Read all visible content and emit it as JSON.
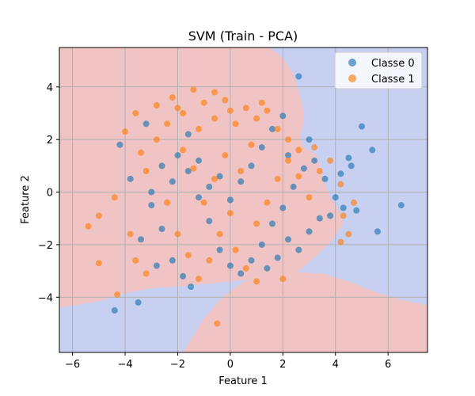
{
  "chart_data": {
    "type": "scatter",
    "title": "SVM (Train - PCA)",
    "xlabel": "Feature 1",
    "ylabel": "Feature 2",
    "xlim": [
      -6.5,
      7.5
    ],
    "ylim": [
      -6.1,
      5.5
    ],
    "xticks": [
      -6,
      -4,
      -2,
      0,
      2,
      4,
      6
    ],
    "yticks": [
      -4,
      -2,
      0,
      2,
      4
    ],
    "grid": true,
    "legend_position": "top-right",
    "region_colors": {
      "class_0": "#c8d0f2",
      "class_1": "#f0c4c4"
    },
    "decision_boundary": {
      "upper_segment": [
        [
          -6.5,
          5.5
        ],
        [
          -1.5,
          5.5
        ],
        [
          1.5,
          5.5
        ],
        [
          2.0,
          5.1
        ],
        [
          2.4,
          4.5
        ],
        [
          2.55,
          4.0
        ],
        [
          2.75,
          3.3
        ],
        [
          2.8,
          2.7
        ],
        [
          2.65,
          2.1
        ],
        [
          2.8,
          1.7
        ],
        [
          3.3,
          1.4
        ],
        [
          3.5,
          0.6
        ],
        [
          3.8,
          -0.2
        ],
        [
          4.2,
          -0.8
        ],
        [
          4.3,
          -1.2
        ],
        [
          3.9,
          -1.8
        ],
        [
          3.3,
          -2.4
        ],
        [
          2.6,
          -3.0
        ],
        [
          1.8,
          -3.4
        ],
        [
          0.9,
          -3.3
        ],
        [
          0.0,
          -3.4
        ],
        [
          -1.0,
          -3.5
        ],
        [
          -2.0,
          -3.6
        ],
        [
          -3.0,
          -3.65
        ],
        [
          -4.0,
          -3.85
        ],
        [
          -5.0,
          -4.15
        ],
        [
          -6.5,
          -4.4
        ]
      ],
      "lower_segment": [
        [
          -1.8,
          -6.1
        ],
        [
          -1.0,
          -4.8
        ],
        [
          -0.3,
          -4.0
        ],
        [
          0.5,
          -3.4
        ],
        [
          1.5,
          -3.15
        ],
        [
          2.5,
          -3.05
        ],
        [
          3.5,
          -3.1
        ],
        [
          4.5,
          -3.4
        ],
        [
          5.5,
          -3.8
        ],
        [
          6.5,
          -4.1
        ],
        [
          7.5,
          -4.3
        ]
      ]
    },
    "series": [
      {
        "name": "Classe 0",
        "color": "#1f77b4",
        "points": [
          [
            -4.4,
            -4.5
          ],
          [
            -3.5,
            -4.2
          ],
          [
            -3.2,
            2.6
          ],
          [
            -4.2,
            1.8
          ],
          [
            -3.8,
            0.5
          ],
          [
            -3.0,
            -0.5
          ],
          [
            -2.6,
            -1.4
          ],
          [
            -2.2,
            -2.6
          ],
          [
            -1.8,
            -3.2
          ],
          [
            -1.5,
            -3.6
          ],
          [
            -2.0,
            1.4
          ],
          [
            -1.6,
            0.8
          ],
          [
            -1.2,
            -0.2
          ],
          [
            -0.8,
            -1.1
          ],
          [
            -0.4,
            -2.2
          ],
          [
            0.0,
            -2.8
          ],
          [
            0.4,
            -3.1
          ],
          [
            0.8,
            -2.6
          ],
          [
            1.2,
            -2.0
          ],
          [
            1.6,
            -1.2
          ],
          [
            2.0,
            -0.6
          ],
          [
            2.4,
            0.2
          ],
          [
            2.8,
            0.9
          ],
          [
            3.2,
            1.2
          ],
          [
            3.6,
            0.5
          ],
          [
            4.0,
            -0.2
          ],
          [
            4.3,
            -0.6
          ],
          [
            4.6,
            1.0
          ],
          [
            4.8,
            -0.7
          ],
          [
            5.0,
            2.5
          ],
          [
            5.4,
            1.6
          ],
          [
            5.6,
            -1.5
          ],
          [
            6.5,
            -0.5
          ],
          [
            2.6,
            4.4
          ],
          [
            2.0,
            2.9
          ],
          [
            1.6,
            2.4
          ],
          [
            1.2,
            1.7
          ],
          [
            0.8,
            1.0
          ],
          [
            0.4,
            0.4
          ],
          [
            0.0,
            -0.3
          ],
          [
            -0.4,
            0.6
          ],
          [
            -0.8,
            0.2
          ],
          [
            -1.2,
            1.2
          ],
          [
            -1.6,
            2.2
          ],
          [
            -2.2,
            0.4
          ],
          [
            -2.6,
            1.0
          ],
          [
            -3.0,
            0.0
          ],
          [
            3.0,
            -1.5
          ],
          [
            2.6,
            -2.2
          ],
          [
            2.2,
            -1.8
          ],
          [
            1.8,
            -2.5
          ],
          [
            1.4,
            -2.9
          ],
          [
            3.4,
            -1.0
          ],
          [
            3.8,
            -0.9
          ],
          [
            -3.4,
            -1.8
          ],
          [
            -2.8,
            -2.8
          ],
          [
            4.2,
            0.7
          ],
          [
            4.5,
            1.3
          ],
          [
            3.0,
            2.0
          ],
          [
            2.2,
            1.4
          ]
        ]
      },
      {
        "name": "Classe 1",
        "color": "#ff7f0e",
        "points": [
          [
            -0.5,
            -5.0
          ],
          [
            -5.0,
            -0.9
          ],
          [
            -5.4,
            -1.3
          ],
          [
            -5.0,
            -2.7
          ],
          [
            -4.3,
            -3.9
          ],
          [
            -4.4,
            -0.2
          ],
          [
            -4.0,
            2.3
          ],
          [
            -3.6,
            3.0
          ],
          [
            -3.4,
            1.5
          ],
          [
            -3.8,
            -1.6
          ],
          [
            -3.6,
            -2.6
          ],
          [
            -3.2,
            -3.1
          ],
          [
            -2.8,
            3.3
          ],
          [
            -2.2,
            3.6
          ],
          [
            -1.8,
            3.0
          ],
          [
            -1.4,
            3.9
          ],
          [
            -1.0,
            3.4
          ],
          [
            -0.6,
            2.8
          ],
          [
            -0.2,
            3.5
          ],
          [
            0.2,
            2.6
          ],
          [
            0.6,
            3.2
          ],
          [
            1.0,
            2.8
          ],
          [
            1.4,
            3.1
          ],
          [
            1.8,
            2.4
          ],
          [
            2.2,
            2.0
          ],
          [
            -0.6,
            3.8
          ],
          [
            -1.2,
            2.4
          ],
          [
            -2.4,
            2.6
          ],
          [
            -2.8,
            2.0
          ],
          [
            -3.2,
            0.8
          ],
          [
            -2.4,
            -0.4
          ],
          [
            -2.0,
            -1.6
          ],
          [
            -1.6,
            -2.4
          ],
          [
            -1.2,
            -3.3
          ],
          [
            -0.8,
            -2.6
          ],
          [
            -0.4,
            -1.6
          ],
          [
            0.0,
            -0.8
          ],
          [
            0.4,
            0.8
          ],
          [
            0.8,
            1.8
          ],
          [
            -0.2,
            1.4
          ],
          [
            -0.6,
            0.5
          ],
          [
            -1.0,
            -0.4
          ],
          [
            -1.4,
            0.9
          ],
          [
            -1.8,
            1.6
          ],
          [
            0.2,
            -2.2
          ],
          [
            0.6,
            -2.9
          ],
          [
            1.0,
            -1.2
          ],
          [
            1.4,
            -0.4
          ],
          [
            1.8,
            0.5
          ],
          [
            2.2,
            1.2
          ],
          [
            2.6,
            0.6
          ],
          [
            3.0,
            -0.2
          ],
          [
            3.4,
            0.8
          ],
          [
            3.2,
            1.7
          ],
          [
            2.0,
            -3.3
          ],
          [
            1.0,
            -3.4
          ],
          [
            3.8,
            1.2
          ],
          [
            4.2,
            0.3
          ],
          [
            4.3,
            -0.9
          ],
          [
            4.7,
            -0.4
          ],
          [
            4.2,
            -1.9
          ],
          [
            4.5,
            -1.6
          ],
          [
            2.6,
            1.6
          ],
          [
            1.2,
            3.4
          ],
          [
            0.0,
            3.1
          ],
          [
            -2.0,
            3.2
          ]
        ]
      }
    ]
  }
}
